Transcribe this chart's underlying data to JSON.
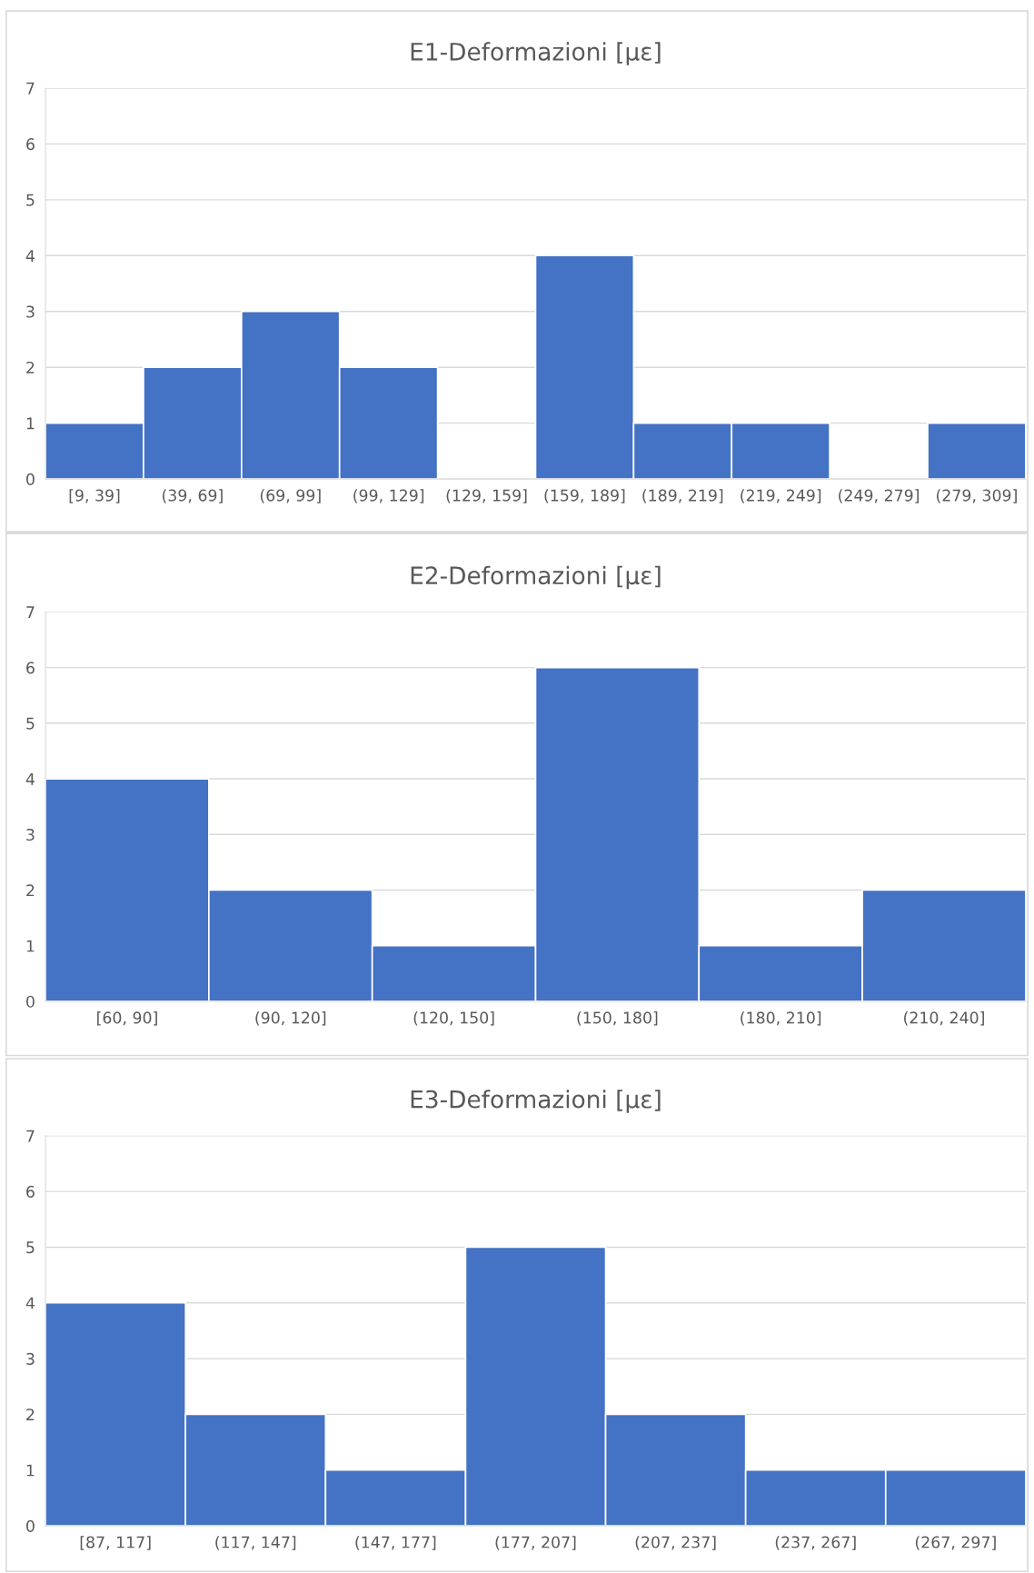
{
  "chart_data": [
    {
      "type": "bar",
      "title": "E1-Deformazioni [µε]",
      "categories": [
        "[9, 39]",
        "(39, 69]",
        "(69, 99]",
        "(99, 129]",
        "(129, 159]",
        "(159, 189]",
        "(189, 219]",
        "(219, 249]",
        "(249, 279]",
        "(279, 309]"
      ],
      "values": [
        1,
        2,
        3,
        2,
        0,
        4,
        1,
        1,
        0,
        1
      ],
      "color": "#4472c4",
      "ylim": [
        0,
        7
      ],
      "yticks": [
        0,
        1,
        2,
        3,
        4,
        5,
        6,
        7
      ],
      "grid": "y",
      "legend": false
    },
    {
      "type": "bar",
      "title": "E2-Deformazioni [µε]",
      "categories": [
        "[60, 90]",
        "(90, 120]",
        "(120, 150]",
        "(150, 180]",
        "(180, 210]",
        "(210, 240]"
      ],
      "values": [
        4,
        2,
        1,
        6,
        1,
        2
      ],
      "color": "#4472c4",
      "ylim": [
        0,
        7
      ],
      "yticks": [
        0,
        1,
        2,
        3,
        4,
        5,
        6,
        7
      ],
      "grid": "y",
      "legend": false
    },
    {
      "type": "bar",
      "title": "E3-Deformazioni [µε]",
      "categories": [
        "[87, 117]",
        "(117, 147]",
        "(147, 177]",
        "(177, 207]",
        "(207, 237]",
        "(237, 267]",
        "(267, 297]"
      ],
      "values": [
        4,
        2,
        1,
        5,
        2,
        1,
        1
      ],
      "color": "#4472c4",
      "ylim": [
        0,
        7
      ],
      "yticks": [
        0,
        1,
        2,
        3,
        4,
        5,
        6,
        7
      ],
      "grid": "y",
      "legend": false
    }
  ]
}
